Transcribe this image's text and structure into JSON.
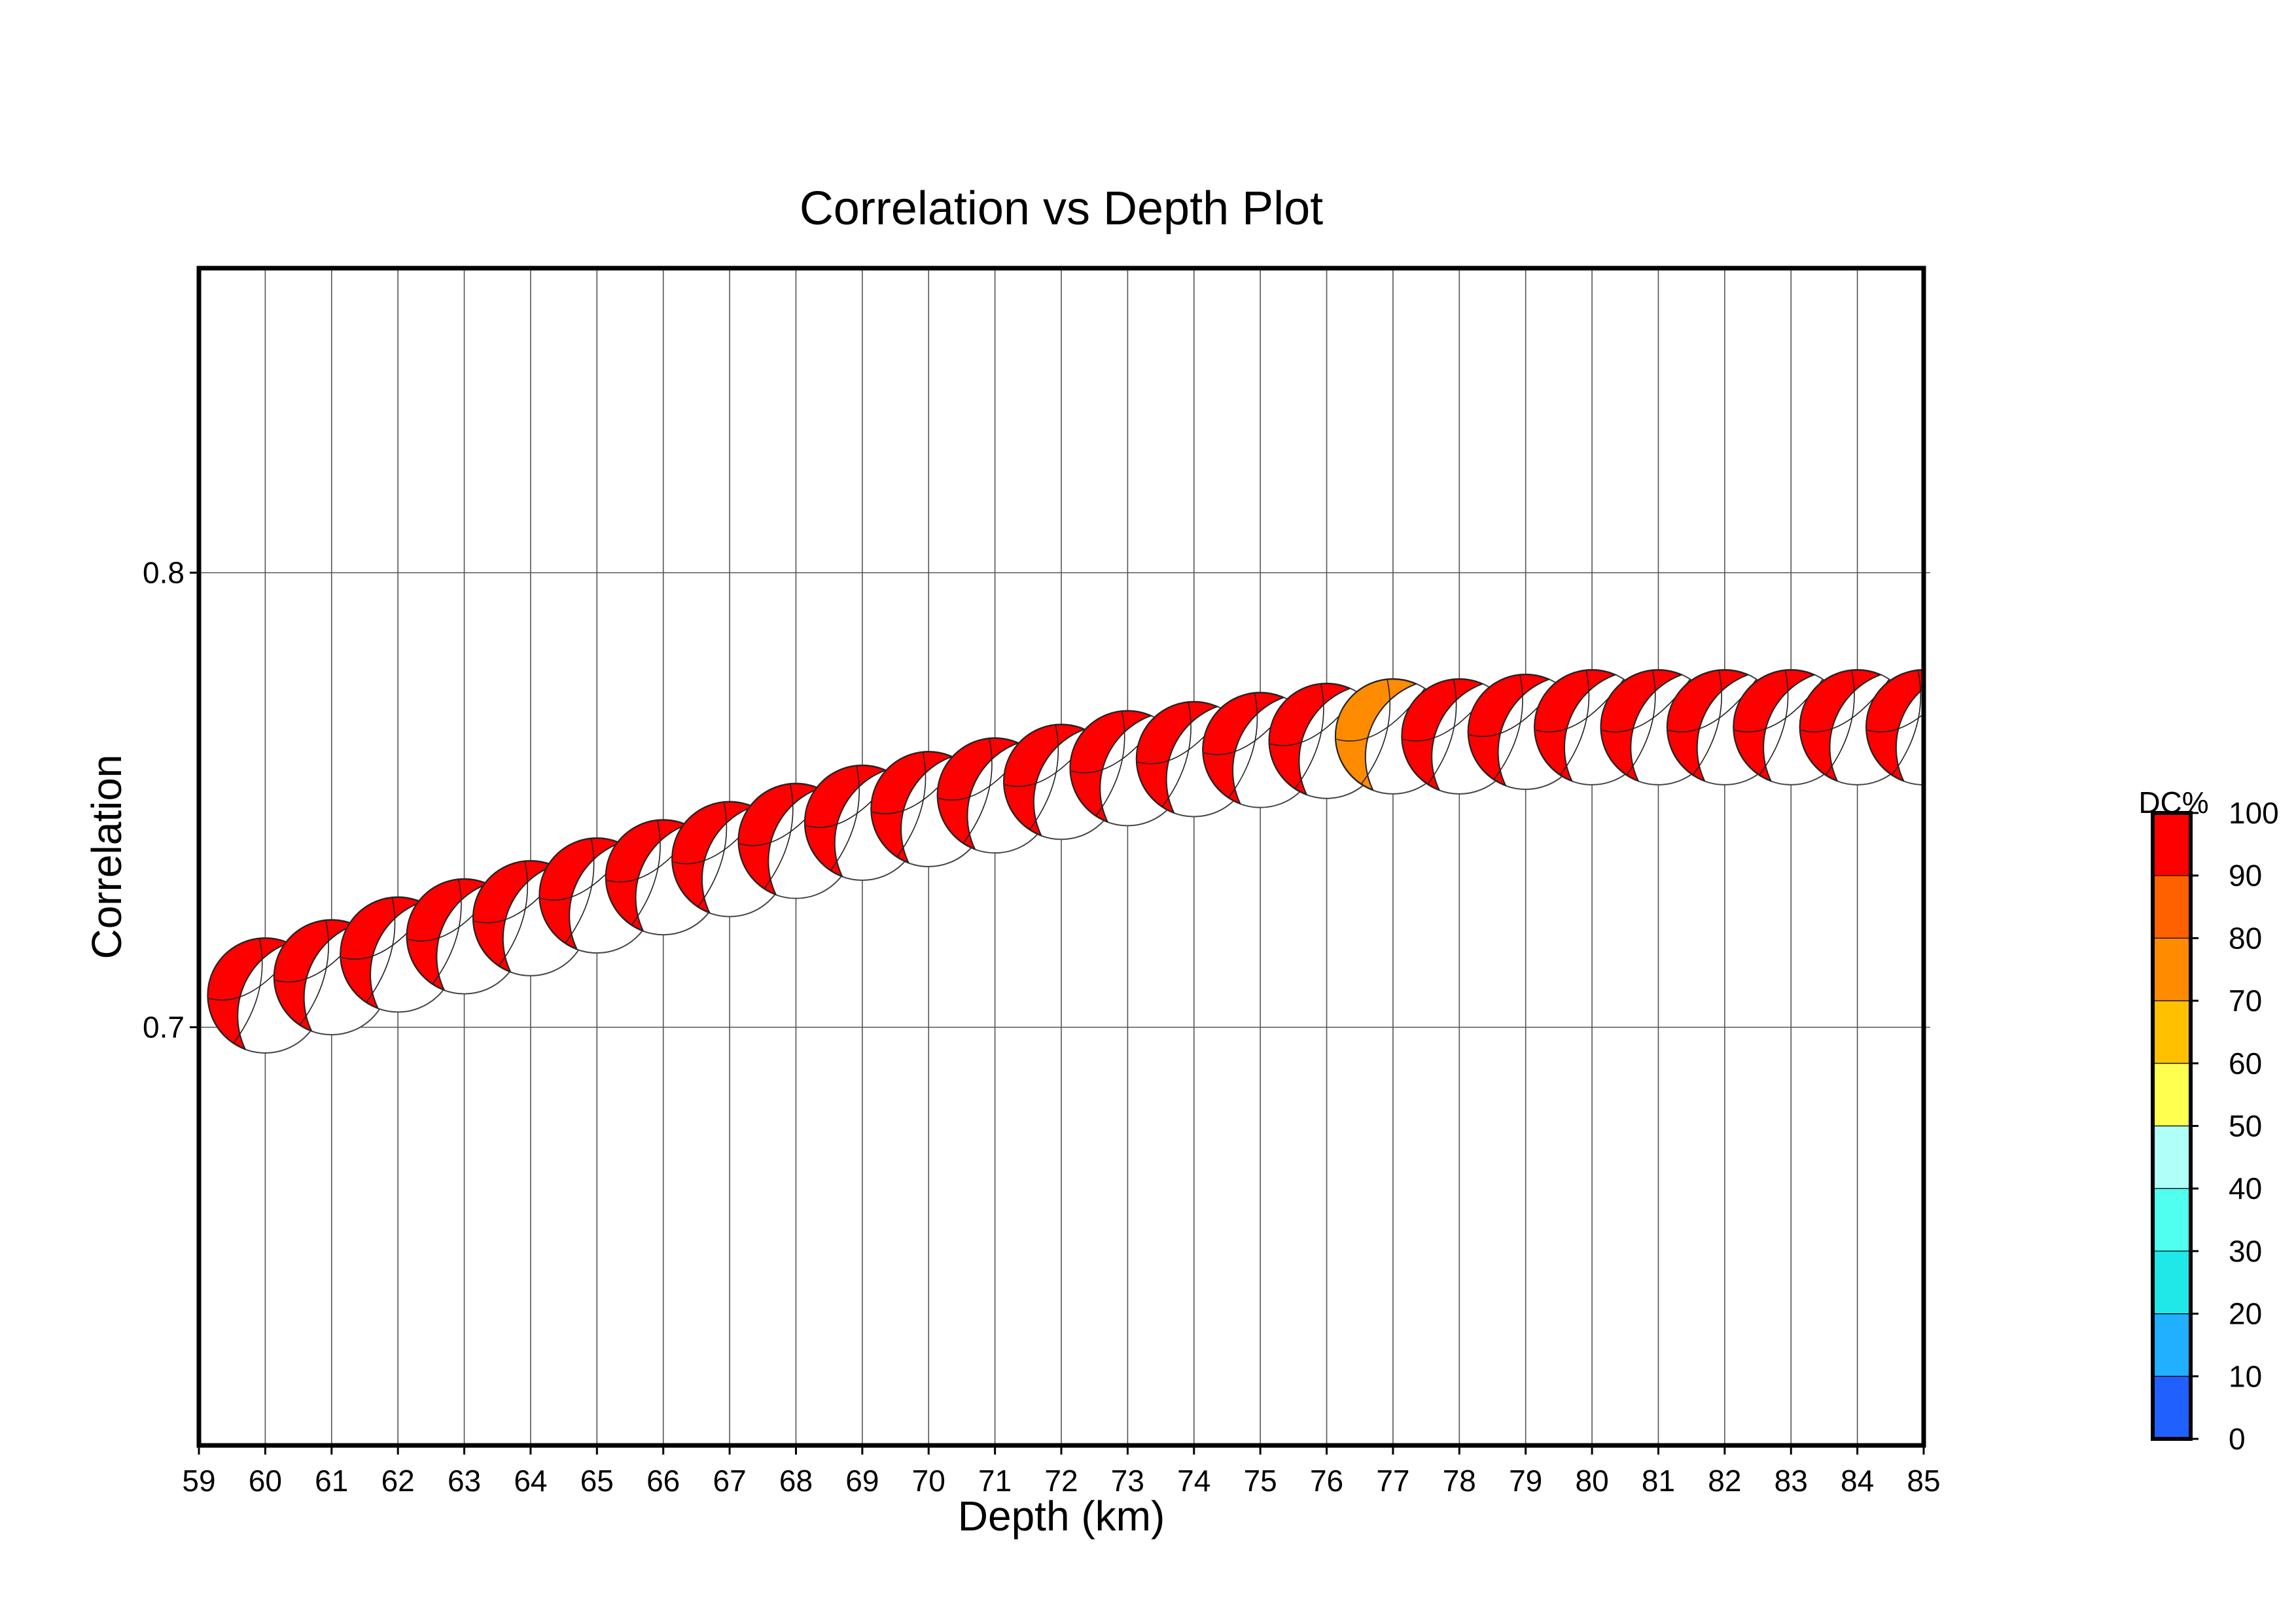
{
  "chart_data": {
    "type": "scatter",
    "title": "Correlation vs Depth Plot",
    "xlabel": "Depth (km)",
    "ylabel": "Correlation",
    "xlim": [
      59,
      85
    ],
    "ylim": [
      0.608,
      0.867
    ],
    "x_ticks": [
      "59",
      "60",
      "61",
      "62",
      "63",
      "64",
      "65",
      "66",
      "67",
      "68",
      "69",
      "70",
      "71",
      "72",
      "73",
      "74",
      "75",
      "76",
      "77",
      "78",
      "79",
      "80",
      "81",
      "82",
      "83",
      "84",
      "85"
    ],
    "y_ticks": [
      "0.7",
      "0.8"
    ],
    "grid": true,
    "marker": "focal-mechanism beachball",
    "points": [
      {
        "depth": 60,
        "correlation": 0.707,
        "dc": 97
      },
      {
        "depth": 61,
        "correlation": 0.711,
        "dc": 97
      },
      {
        "depth": 62,
        "correlation": 0.716,
        "dc": 97
      },
      {
        "depth": 63,
        "correlation": 0.72,
        "dc": 97
      },
      {
        "depth": 64,
        "correlation": 0.724,
        "dc": 97
      },
      {
        "depth": 65,
        "correlation": 0.729,
        "dc": 97
      },
      {
        "depth": 66,
        "correlation": 0.733,
        "dc": 97
      },
      {
        "depth": 67,
        "correlation": 0.737,
        "dc": 97
      },
      {
        "depth": 68,
        "correlation": 0.741,
        "dc": 97
      },
      {
        "depth": 69,
        "correlation": 0.745,
        "dc": 97
      },
      {
        "depth": 70,
        "correlation": 0.748,
        "dc": 97
      },
      {
        "depth": 71,
        "correlation": 0.751,
        "dc": 97
      },
      {
        "depth": 72,
        "correlation": 0.754,
        "dc": 97
      },
      {
        "depth": 73,
        "correlation": 0.757,
        "dc": 97
      },
      {
        "depth": 74,
        "correlation": 0.759,
        "dc": 97
      },
      {
        "depth": 75,
        "correlation": 0.761,
        "dc": 97
      },
      {
        "depth": 76,
        "correlation": 0.763,
        "dc": 97
      },
      {
        "depth": 77,
        "correlation": 0.764,
        "dc": 75
      },
      {
        "depth": 78,
        "correlation": 0.764,
        "dc": 97
      },
      {
        "depth": 79,
        "correlation": 0.765,
        "dc": 97
      },
      {
        "depth": 80,
        "correlation": 0.766,
        "dc": 97
      },
      {
        "depth": 81,
        "correlation": 0.766,
        "dc": 97
      },
      {
        "depth": 82,
        "correlation": 0.766,
        "dc": 97
      },
      {
        "depth": 83,
        "correlation": 0.766,
        "dc": 97
      },
      {
        "depth": 84,
        "correlation": 0.766,
        "dc": 97
      },
      {
        "depth": 85,
        "correlation": 0.766,
        "dc": 97
      }
    ],
    "colorbar": {
      "title": "DC%",
      "range": [
        0,
        100
      ],
      "tick_labels": [
        "0",
        "10",
        "20",
        "30",
        "40",
        "50",
        "60",
        "70",
        "80",
        "90",
        "100"
      ],
      "colors": [
        "#2060ff",
        "#20b0ff",
        "#20e8e8",
        "#50fff0",
        "#b0fff8",
        "#ffff50",
        "#ffc000",
        "#ff8c00",
        "#ff6000",
        "#ff0000"
      ]
    }
  }
}
